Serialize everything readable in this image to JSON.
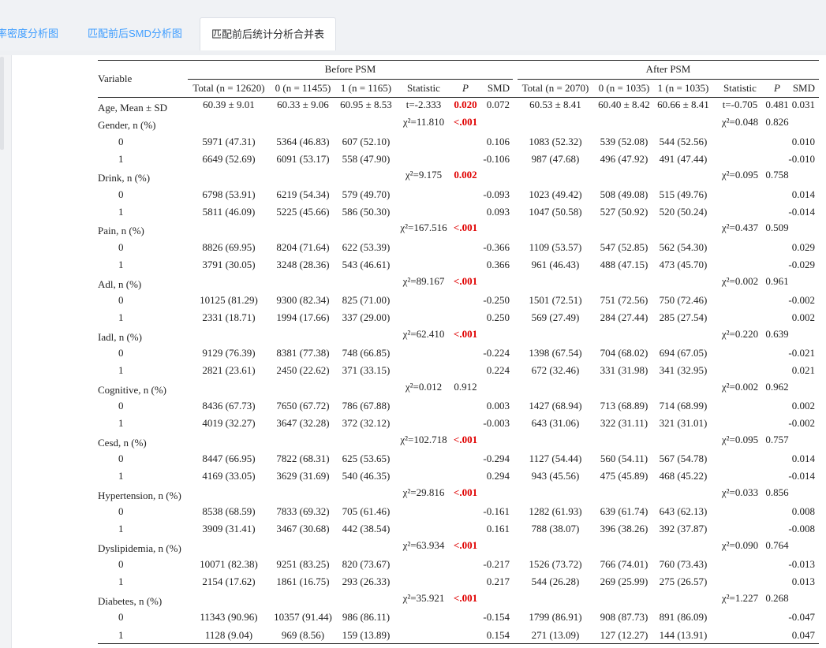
{
  "tabs": [
    {
      "label": "率密度分析图",
      "active": false
    },
    {
      "label": "匹配前后SMD分析图",
      "active": false
    },
    {
      "label": "匹配前后统计分析合并表",
      "active": true
    }
  ],
  "table": {
    "variable_header": "Variable",
    "group_headers": [
      "Before PSM",
      "After PSM"
    ],
    "columns": [
      "Total (n = 12620)",
      "0 (n = 11455)",
      "1 (n = 1165)",
      "Statistic",
      "P",
      "SMD",
      "Total (n = 2070)",
      "0 (n = 1035)",
      "1 (n = 1035)",
      "Statistic",
      "P",
      "SMD"
    ],
    "rows": [
      {
        "type": "main",
        "label": "Age, Mean ± SD",
        "b_total": "60.39 ± 9.01",
        "b0": "60.33 ± 9.06",
        "b1": "60.95 ± 8.53",
        "b_stat": "t=-2.333",
        "b_p": "0.020",
        "b_p_sig": true,
        "b_smd": "0.072",
        "a_total": "60.53 ± 8.41",
        "a0": "60.40 ± 8.42",
        "a1": "60.66 ± 8.41",
        "a_stat": "t=-0.705",
        "a_p": "0.481",
        "a_smd": "0.031"
      },
      {
        "type": "main",
        "label": "Gender, n (%)",
        "b_stat": "χ²=11.810",
        "b_p": "<.001",
        "b_p_sig": true,
        "a_stat": "χ²=0.048",
        "a_p": "0.826"
      },
      {
        "type": "sub",
        "label": "0",
        "b_total": "5971 (47.31)",
        "b0": "5364 (46.83)",
        "b1": "607 (52.10)",
        "b_smd": "0.106",
        "a_total": "1083 (52.32)",
        "a0": "539 (52.08)",
        "a1": "544 (52.56)",
        "a_smd": "0.010"
      },
      {
        "type": "sub",
        "label": "1",
        "b_total": "6649 (52.69)",
        "b0": "6091 (53.17)",
        "b1": "558 (47.90)",
        "b_smd": "-0.106",
        "a_total": "987 (47.68)",
        "a0": "496 (47.92)",
        "a1": "491 (47.44)",
        "a_smd": "-0.010"
      },
      {
        "type": "main",
        "label": "Drink, n (%)",
        "b_stat": "χ²=9.175",
        "b_p": "0.002",
        "b_p_sig": true,
        "a_stat": "χ²=0.095",
        "a_p": "0.758"
      },
      {
        "type": "sub",
        "label": "0",
        "b_total": "6798 (53.91)",
        "b0": "6219 (54.34)",
        "b1": "579 (49.70)",
        "b_smd": "-0.093",
        "a_total": "1023 (49.42)",
        "a0": "508 (49.08)",
        "a1": "515 (49.76)",
        "a_smd": "0.014"
      },
      {
        "type": "sub",
        "label": "1",
        "b_total": "5811 (46.09)",
        "b0": "5225 (45.66)",
        "b1": "586 (50.30)",
        "b_smd": "0.093",
        "a_total": "1047 (50.58)",
        "a0": "527 (50.92)",
        "a1": "520 (50.24)",
        "a_smd": "-0.014"
      },
      {
        "type": "main",
        "label": "Pain, n (%)",
        "b_stat": "χ²=167.516",
        "b_p": "<.001",
        "b_p_sig": true,
        "a_stat": "χ²=0.437",
        "a_p": "0.509"
      },
      {
        "type": "sub",
        "label": "0",
        "b_total": "8826 (69.95)",
        "b0": "8204 (71.64)",
        "b1": "622 (53.39)",
        "b_smd": "-0.366",
        "a_total": "1109 (53.57)",
        "a0": "547 (52.85)",
        "a1": "562 (54.30)",
        "a_smd": "0.029"
      },
      {
        "type": "sub",
        "label": "1",
        "b_total": "3791 (30.05)",
        "b0": "3248 (28.36)",
        "b1": "543 (46.61)",
        "b_smd": "0.366",
        "a_total": "961 (46.43)",
        "a0": "488 (47.15)",
        "a1": "473 (45.70)",
        "a_smd": "-0.029"
      },
      {
        "type": "main",
        "label": "Adl, n (%)",
        "b_stat": "χ²=89.167",
        "b_p": "<.001",
        "b_p_sig": true,
        "a_stat": "χ²=0.002",
        "a_p": "0.961"
      },
      {
        "type": "sub",
        "label": "0",
        "b_total": "10125 (81.29)",
        "b0": "9300 (82.34)",
        "b1": "825 (71.00)",
        "b_smd": "-0.250",
        "a_total": "1501 (72.51)",
        "a0": "751 (72.56)",
        "a1": "750 (72.46)",
        "a_smd": "-0.002"
      },
      {
        "type": "sub",
        "label": "1",
        "b_total": "2331 (18.71)",
        "b0": "1994 (17.66)",
        "b1": "337 (29.00)",
        "b_smd": "0.250",
        "a_total": "569 (27.49)",
        "a0": "284 (27.44)",
        "a1": "285 (27.54)",
        "a_smd": "0.002"
      },
      {
        "type": "main",
        "label": "Iadl, n (%)",
        "b_stat": "χ²=62.410",
        "b_p": "<.001",
        "b_p_sig": true,
        "a_stat": "χ²=0.220",
        "a_p": "0.639"
      },
      {
        "type": "sub",
        "label": "0",
        "b_total": "9129 (76.39)",
        "b0": "8381 (77.38)",
        "b1": "748 (66.85)",
        "b_smd": "-0.224",
        "a_total": "1398 (67.54)",
        "a0": "704 (68.02)",
        "a1": "694 (67.05)",
        "a_smd": "-0.021"
      },
      {
        "type": "sub",
        "label": "1",
        "b_total": "2821 (23.61)",
        "b0": "2450 (22.62)",
        "b1": "371 (33.15)",
        "b_smd": "0.224",
        "a_total": "672 (32.46)",
        "a0": "331 (31.98)",
        "a1": "341 (32.95)",
        "a_smd": "0.021"
      },
      {
        "type": "main",
        "label": "Cognitive, n (%)",
        "b_stat": "χ²=0.012",
        "b_p": "0.912",
        "b_p_sig": false,
        "a_stat": "χ²=0.002",
        "a_p": "0.962"
      },
      {
        "type": "sub",
        "label": "0",
        "b_total": "8436 (67.73)",
        "b0": "7650 (67.72)",
        "b1": "786 (67.88)",
        "b_smd": "0.003",
        "a_total": "1427 (68.94)",
        "a0": "713 (68.89)",
        "a1": "714 (68.99)",
        "a_smd": "0.002"
      },
      {
        "type": "sub",
        "label": "1",
        "b_total": "4019 (32.27)",
        "b0": "3647 (32.28)",
        "b1": "372 (32.12)",
        "b_smd": "-0.003",
        "a_total": "643 (31.06)",
        "a0": "322 (31.11)",
        "a1": "321 (31.01)",
        "a_smd": "-0.002"
      },
      {
        "type": "main",
        "label": "Cesd, n (%)",
        "b_stat": "χ²=102.718",
        "b_p": "<.001",
        "b_p_sig": true,
        "a_stat": "χ²=0.095",
        "a_p": "0.757"
      },
      {
        "type": "sub",
        "label": "0",
        "b_total": "8447 (66.95)",
        "b0": "7822 (68.31)",
        "b1": "625 (53.65)",
        "b_smd": "-0.294",
        "a_total": "1127 (54.44)",
        "a0": "560 (54.11)",
        "a1": "567 (54.78)",
        "a_smd": "0.014"
      },
      {
        "type": "sub",
        "label": "1",
        "b_total": "4169 (33.05)",
        "b0": "3629 (31.69)",
        "b1": "540 (46.35)",
        "b_smd": "0.294",
        "a_total": "943 (45.56)",
        "a0": "475 (45.89)",
        "a1": "468 (45.22)",
        "a_smd": "-0.014"
      },
      {
        "type": "main",
        "label": "Hypertension, n (%)",
        "b_stat": "χ²=29.816",
        "b_p": "<.001",
        "b_p_sig": true,
        "a_stat": "χ²=0.033",
        "a_p": "0.856"
      },
      {
        "type": "sub",
        "label": "0",
        "b_total": "8538 (68.59)",
        "b0": "7833 (69.32)",
        "b1": "705 (61.46)",
        "b_smd": "-0.161",
        "a_total": "1282 (61.93)",
        "a0": "639 (61.74)",
        "a1": "643 (62.13)",
        "a_smd": "0.008"
      },
      {
        "type": "sub",
        "label": "1",
        "b_total": "3909 (31.41)",
        "b0": "3467 (30.68)",
        "b1": "442 (38.54)",
        "b_smd": "0.161",
        "a_total": "788 (38.07)",
        "a0": "396 (38.26)",
        "a1": "392 (37.87)",
        "a_smd": "-0.008"
      },
      {
        "type": "main",
        "label": "Dyslipidemia, n (%)",
        "b_stat": "χ²=63.934",
        "b_p": "<.001",
        "b_p_sig": true,
        "a_stat": "χ²=0.090",
        "a_p": "0.764"
      },
      {
        "type": "sub",
        "label": "0",
        "b_total": "10071 (82.38)",
        "b0": "9251 (83.25)",
        "b1": "820 (73.67)",
        "b_smd": "-0.217",
        "a_total": "1526 (73.72)",
        "a0": "766 (74.01)",
        "a1": "760 (73.43)",
        "a_smd": "-0.013"
      },
      {
        "type": "sub",
        "label": "1",
        "b_total": "2154 (17.62)",
        "b0": "1861 (16.75)",
        "b1": "293 (26.33)",
        "b_smd": "0.217",
        "a_total": "544 (26.28)",
        "a0": "269 (25.99)",
        "a1": "275 (26.57)",
        "a_smd": "0.013"
      },
      {
        "type": "main",
        "label": "Diabetes, n (%)",
        "b_stat": "χ²=35.921",
        "b_p": "<.001",
        "b_p_sig": true,
        "a_stat": "χ²=1.227",
        "a_p": "0.268"
      },
      {
        "type": "sub",
        "label": "0",
        "b_total": "11343 (90.96)",
        "b0": "10357 (91.44)",
        "b1": "986 (86.11)",
        "b_smd": "-0.154",
        "a_total": "1799 (86.91)",
        "a0": "908 (87.73)",
        "a1": "891 (86.09)",
        "a_smd": "-0.047"
      },
      {
        "type": "sub",
        "label": "1",
        "b_total": "1128 (9.04)",
        "b0": "969 (8.56)",
        "b1": "159 (13.89)",
        "b_smd": "0.154",
        "a_total": "271 (13.09)",
        "a0": "127 (12.27)",
        "a1": "144 (13.91)",
        "a_smd": "0.047"
      }
    ]
  }
}
